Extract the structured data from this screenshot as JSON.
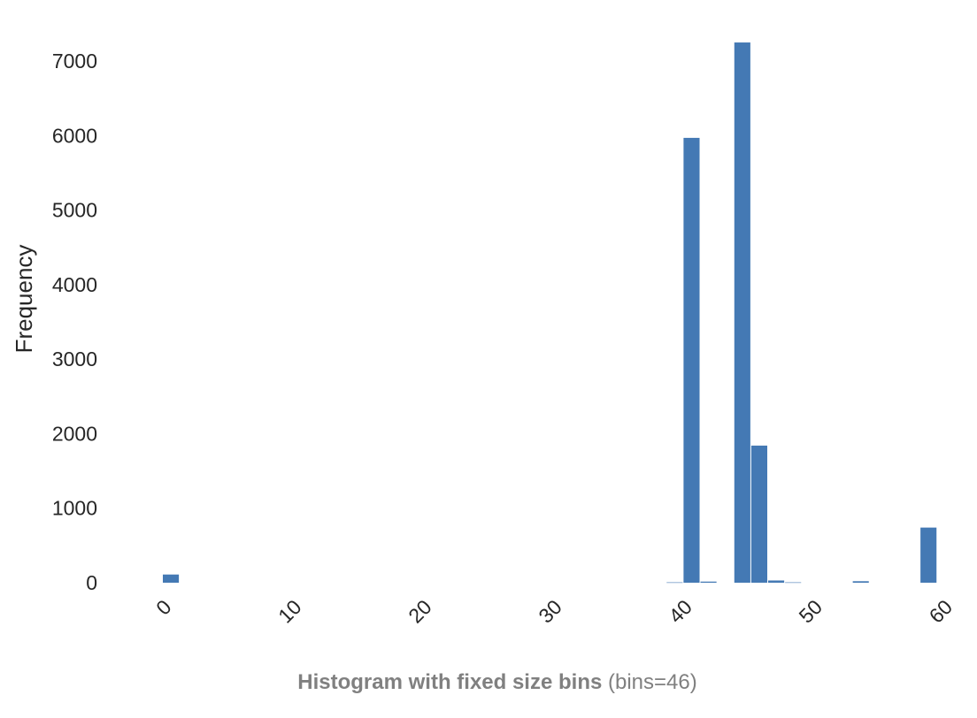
{
  "chart_data": {
    "type": "bar",
    "title": "Histogram with fixed size bins",
    "subtitle": "(bins=46)",
    "xlabel": "",
    "ylabel": "Frequency",
    "bins": 46,
    "xlim": [
      -4,
      60
    ],
    "ylim": [
      -50,
      7300
    ],
    "xticks": [
      0,
      10,
      20,
      30,
      40,
      50,
      60
    ],
    "yticks": [
      0,
      1000,
      2000,
      3000,
      4000,
      5000,
      6000,
      7000
    ],
    "bar_color": "#4479b4",
    "grid": false,
    "bars": [
      {
        "x0": 0.0,
        "x1": 1.3,
        "count": 110
      },
      {
        "x0": 38.7,
        "x1": 40.0,
        "count": 5,
        "comment": ""
      },
      {
        "x0": 40.0,
        "x1": 41.3,
        "count": 5970
      },
      {
        "x0": 41.3,
        "x1": 42.6,
        "count": 15
      },
      {
        "x0": 43.9,
        "x1": 45.2,
        "count": 7250
      },
      {
        "x0": 45.2,
        "x1": 46.5,
        "count": 1840
      },
      {
        "x0": 46.5,
        "x1": 47.8,
        "count": 30
      },
      {
        "x0": 47.8,
        "x1": 49.1,
        "count": 5
      },
      {
        "x0": 53.0,
        "x1": 54.3,
        "count": 20
      },
      {
        "x0": 58.2,
        "x1": 59.5,
        "count": 740
      }
    ]
  }
}
